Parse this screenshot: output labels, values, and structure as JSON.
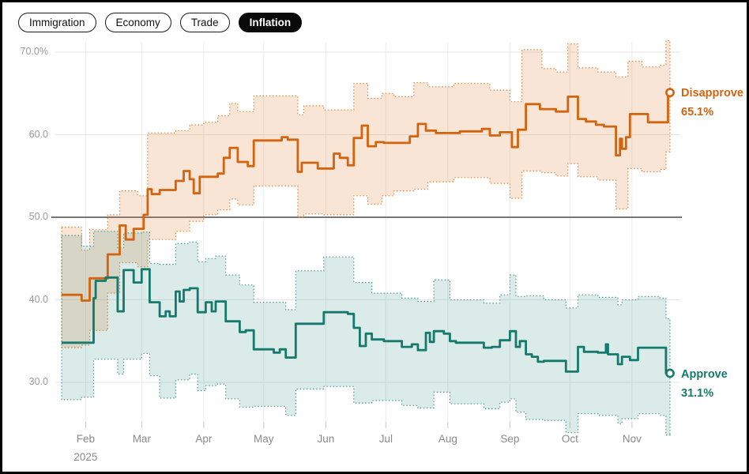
{
  "tabs": {
    "items": [
      {
        "label": "Immigration",
        "selected": false
      },
      {
        "label": "Economy",
        "selected": false
      },
      {
        "label": "Trade",
        "selected": false
      },
      {
        "label": "Inflation",
        "selected": true
      }
    ]
  },
  "colors": {
    "disapprove": "#d2630f",
    "disapprove_band_edge": "#e0883f",
    "approve": "#15796c",
    "approve_band_edge": "#4d9d90",
    "grid": "#e5e5e5",
    "ref_line": "#4b4b4b",
    "axis_text": "#9b9b9b",
    "selected_tab_bg": "#0a0a0a"
  },
  "chart_data": {
    "type": "line",
    "title": "",
    "x_axis": {
      "unit": "days from series start (late Jan 2025)",
      "month_ticks": [
        {
          "label": "Feb",
          "day": 12
        },
        {
          "label": "Mar",
          "day": 40
        },
        {
          "label": "Apr",
          "day": 71
        },
        {
          "label": "May",
          "day": 101
        },
        {
          "label": "Jun",
          "day": 132
        },
        {
          "label": "Jul",
          "day": 162
        },
        {
          "label": "Aug",
          "day": 193
        },
        {
          "label": "Sep",
          "day": 224
        },
        {
          "label": "Oct",
          "day": 254
        },
        {
          "label": "Nov",
          "day": 285
        }
      ],
      "year_label": "2025",
      "year_under": "Feb",
      "domain_days": [
        0,
        304
      ]
    },
    "y_axis": {
      "ticks": [
        30,
        40,
        50,
        60,
        70
      ],
      "tick_labels": [
        "30.0",
        "40.0",
        "50.0",
        "60.0",
        "70.0%"
      ],
      "ref_line": 50,
      "ylim": [
        23,
        72
      ]
    },
    "legend_position": "right-of-line-ends",
    "grid": true,
    "series": [
      {
        "name": "Disapprove",
        "end_label": "Disapprove",
        "end_value_label": "65.1%",
        "end_value": 65.1,
        "color": "#d2630f",
        "band_fill": "rgba(226,126,44,0.20)",
        "band_edge": "#e0883f",
        "points": [
          [
            0,
            40.6
          ],
          [
            10,
            39.9
          ],
          [
            14,
            42.6
          ],
          [
            23,
            45.5
          ],
          [
            29,
            49.0
          ],
          [
            32,
            47.3
          ],
          [
            36,
            48.6
          ],
          [
            41,
            50.3
          ],
          [
            43,
            53.4
          ],
          [
            45,
            52.8
          ],
          [
            49,
            53.3
          ],
          [
            57,
            54.4
          ],
          [
            61,
            55.6
          ],
          [
            64,
            54.6
          ],
          [
            66,
            52.9
          ],
          [
            69,
            54.9
          ],
          [
            78,
            55.3
          ],
          [
            81,
            57.2
          ],
          [
            84,
            58.4
          ],
          [
            88,
            56.7
          ],
          [
            93,
            56.2
          ],
          [
            96,
            59.3
          ],
          [
            110,
            59.7
          ],
          [
            113,
            59.4
          ],
          [
            118,
            55.5
          ],
          [
            120,
            56.6
          ],
          [
            128,
            55.9
          ],
          [
            136,
            57.7
          ],
          [
            139,
            57.2
          ],
          [
            143,
            56.3
          ],
          [
            146,
            59.6
          ],
          [
            150,
            61.1
          ],
          [
            153,
            58.6
          ],
          [
            157,
            59.1
          ],
          [
            161,
            59.0
          ],
          [
            174,
            59.8
          ],
          [
            178,
            61.3
          ],
          [
            182,
            60.5
          ],
          [
            187,
            60.2
          ],
          [
            199,
            60.4
          ],
          [
            210,
            60.7
          ],
          [
            214,
            59.9
          ],
          [
            219,
            60.3
          ],
          [
            225,
            58.5
          ],
          [
            228,
            60.6
          ],
          [
            232,
            63.7
          ],
          [
            239,
            63.1
          ],
          [
            247,
            62.8
          ],
          [
            253,
            64.6
          ],
          [
            258,
            61.9
          ],
          [
            262,
            61.6
          ],
          [
            267,
            61.2
          ],
          [
            271,
            61.0
          ],
          [
            275,
            61.0
          ],
          [
            277,
            57.5
          ],
          [
            279,
            59.5
          ],
          [
            280,
            58.3
          ],
          [
            282,
            59.7
          ],
          [
            284,
            62.5
          ],
          [
            293,
            61.5
          ],
          [
            300,
            61.5
          ],
          [
            303,
            65.1
          ],
          [
            304,
            65.1
          ]
        ],
        "band": [
          [
            0,
            34.2,
            48.8
          ],
          [
            10,
            34.5,
            46.0
          ],
          [
            14,
            36.3,
            48.5
          ],
          [
            23,
            40.8,
            50.3
          ],
          [
            29,
            44.5,
            53.2
          ],
          [
            38,
            44.0,
            52.6
          ],
          [
            43,
            47.3,
            60.2
          ],
          [
            57,
            48.3,
            60.5
          ],
          [
            64,
            49.5,
            61.2
          ],
          [
            71,
            50.3,
            61.5
          ],
          [
            78,
            50.9,
            62.3
          ],
          [
            84,
            52.2,
            63.8
          ],
          [
            88,
            51.5,
            62.8
          ],
          [
            96,
            53.8,
            64.7
          ],
          [
            118,
            50.0,
            62.4
          ],
          [
            121,
            50.4,
            63.5
          ],
          [
            131,
            50.3,
            63.0
          ],
          [
            146,
            52.6,
            66.2
          ],
          [
            153,
            51.6,
            64.4
          ],
          [
            160,
            52.6,
            65.0
          ],
          [
            166,
            53.2,
            64.6
          ],
          [
            176,
            53.4,
            66.3
          ],
          [
            183,
            54.3,
            65.8
          ],
          [
            196,
            54.8,
            66.2
          ],
          [
            214,
            54.1,
            65.4
          ],
          [
            224,
            52.3,
            64.0
          ],
          [
            230,
            55.6,
            70.3
          ],
          [
            240,
            55.4,
            68.0
          ],
          [
            247,
            55.0,
            67.6
          ],
          [
            253,
            56.5,
            71.0
          ],
          [
            258,
            54.9,
            68.1
          ],
          [
            268,
            54.5,
            67.6
          ],
          [
            277,
            51.0,
            67.0
          ],
          [
            283,
            55.9,
            68.9
          ],
          [
            290,
            55.5,
            68.2
          ],
          [
            299,
            55.8,
            68.4
          ],
          [
            302,
            57.9,
            71.4
          ],
          [
            304,
            57.9,
            71.2
          ]
        ]
      },
      {
        "name": "Approve",
        "end_label": "Approve",
        "end_value_label": "31.1%",
        "end_value": 31.1,
        "color": "#15796c",
        "band_fill": "rgba(42,139,125,0.17)",
        "band_edge": "#4d9d90",
        "points": [
          [
            0,
            34.8
          ],
          [
            16,
            40.2
          ],
          [
            17,
            42.3
          ],
          [
            22,
            42.7
          ],
          [
            28,
            38.6
          ],
          [
            31,
            43.6
          ],
          [
            36,
            42.1
          ],
          [
            40,
            43.7
          ],
          [
            44,
            39.7
          ],
          [
            49,
            38.0
          ],
          [
            52,
            38.6
          ],
          [
            54,
            38.0
          ],
          [
            57,
            41.0
          ],
          [
            59,
            39.8
          ],
          [
            61,
            41.2
          ],
          [
            64,
            41.4
          ],
          [
            68,
            38.5
          ],
          [
            72,
            39.7
          ],
          [
            75,
            38.6
          ],
          [
            77,
            39.8
          ],
          [
            82,
            37.4
          ],
          [
            89,
            36.1
          ],
          [
            92,
            36.3
          ],
          [
            96,
            34.0
          ],
          [
            106,
            33.6
          ],
          [
            109,
            34.0
          ],
          [
            112,
            33.0
          ],
          [
            117,
            37.1
          ],
          [
            131,
            38.5
          ],
          [
            143,
            38.3
          ],
          [
            146,
            36.6
          ],
          [
            149,
            34.4
          ],
          [
            152,
            35.9
          ],
          [
            155,
            35.2
          ],
          [
            161,
            35.0
          ],
          [
            170,
            34.3
          ],
          [
            175,
            34.6
          ],
          [
            178,
            33.9
          ],
          [
            182,
            36.0
          ],
          [
            184,
            34.9
          ],
          [
            186,
            36.2
          ],
          [
            191,
            35.9
          ],
          [
            194,
            35.0
          ],
          [
            197,
            34.8
          ],
          [
            211,
            34.2
          ],
          [
            215,
            34.3
          ],
          [
            219,
            35.1
          ],
          [
            224,
            36.2
          ],
          [
            227,
            34.3
          ],
          [
            229,
            35.0
          ],
          [
            232,
            33.4
          ],
          [
            235,
            33.1
          ],
          [
            238,
            32.5
          ],
          [
            241,
            32.6
          ],
          [
            252,
            31.3
          ],
          [
            258,
            34.3
          ],
          [
            261,
            33.7
          ],
          [
            268,
            33.6
          ],
          [
            272,
            34.6
          ],
          [
            273,
            33.4
          ],
          [
            278,
            32.2
          ],
          [
            280,
            33.1
          ],
          [
            284,
            32.7
          ],
          [
            288,
            34.2
          ],
          [
            302,
            31.1
          ],
          [
            304,
            31.1
          ]
        ],
        "band": [
          [
            0,
            27.9,
            47.8
          ],
          [
            10,
            28.2,
            46.5
          ],
          [
            16,
            32.8,
            48.3
          ],
          [
            28,
            31.0,
            46.3
          ],
          [
            31,
            32.8,
            48.1
          ],
          [
            40,
            33.5,
            48.2
          ],
          [
            44,
            30.8,
            44.4
          ],
          [
            49,
            28.1,
            44.3
          ],
          [
            57,
            30.3,
            46.8
          ],
          [
            64,
            31.0,
            47.0
          ],
          [
            68,
            29.0,
            44.6
          ],
          [
            72,
            29.6,
            45.0
          ],
          [
            77,
            29.8,
            45.3
          ],
          [
            82,
            28.0,
            43.0
          ],
          [
            89,
            27.0,
            41.8
          ],
          [
            96,
            27.1,
            39.7
          ],
          [
            112,
            26.0,
            38.8
          ],
          [
            117,
            29.2,
            43.5
          ],
          [
            131,
            29.5,
            45.2
          ],
          [
            146,
            27.5,
            42.1
          ],
          [
            155,
            27.8,
            40.8
          ],
          [
            170,
            27.2,
            40.2
          ],
          [
            178,
            26.9,
            39.8
          ],
          [
            186,
            28.8,
            42.4
          ],
          [
            194,
            27.4,
            40.0
          ],
          [
            211,
            26.8,
            39.6
          ],
          [
            219,
            27.6,
            40.6
          ],
          [
            224,
            28.0,
            43.0
          ],
          [
            227,
            26.4,
            40.4
          ],
          [
            232,
            25.5,
            40.5
          ],
          [
            241,
            25.4,
            40.0
          ],
          [
            252,
            23.9,
            39.0
          ],
          [
            258,
            26.2,
            40.6
          ],
          [
            268,
            26.0,
            40.3
          ],
          [
            278,
            25.0,
            39.4
          ],
          [
            280,
            25.6,
            40.0
          ],
          [
            288,
            26.2,
            40.4
          ],
          [
            299,
            26.0,
            40.2
          ],
          [
            302,
            23.6,
            37.7
          ],
          [
            304,
            23.5,
            37.6
          ]
        ]
      }
    ]
  }
}
